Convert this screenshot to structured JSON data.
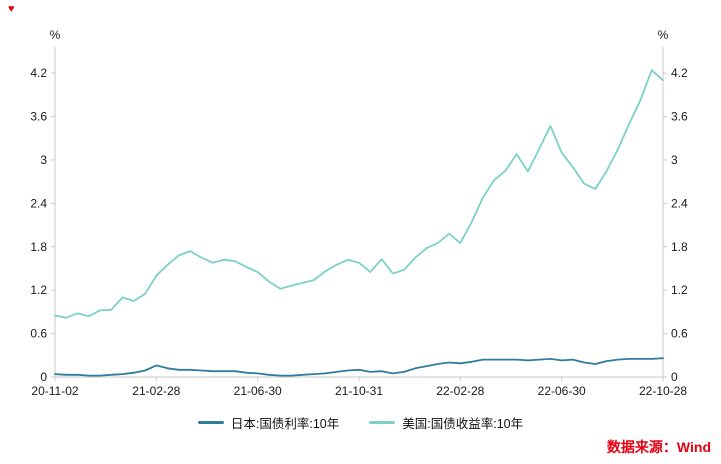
{
  "decor": {
    "corner_marker_glyph": "♥"
  },
  "chart_data": {
    "type": "line",
    "title": "",
    "unit_label": "%",
    "legend_position": "bottom",
    "grid": false,
    "axis_color": "#c9c9c9",
    "tick_text_color": "#1a1a1a",
    "x_tick_labels": [
      "20-11-02",
      "21-02-28",
      "21-06-30",
      "21-10-31",
      "22-02-28",
      "22-06-30",
      "22-10-28"
    ],
    "x_tick_indices": [
      0,
      9,
      18,
      27,
      36,
      45,
      54
    ],
    "y_tick_labels": [
      "0",
      "0.6",
      "1.2",
      "1.8",
      "2.4",
      "3",
      "3.6",
      "4.2"
    ],
    "y_tick_values": [
      0,
      0.6,
      1.2,
      1.8,
      2.4,
      3,
      3.6,
      4.2
    ],
    "ylim": [
      0,
      4.45
    ],
    "series": [
      {
        "name": "日本:国债利率:10年",
        "color": "#2e7d9c",
        "values": [
          0.04,
          0.03,
          0.03,
          0.02,
          0.02,
          0.03,
          0.04,
          0.06,
          0.09,
          0.16,
          0.12,
          0.1,
          0.1,
          0.09,
          0.08,
          0.08,
          0.08,
          0.06,
          0.05,
          0.03,
          0.02,
          0.02,
          0.03,
          0.04,
          0.05,
          0.07,
          0.09,
          0.1,
          0.07,
          0.08,
          0.05,
          0.07,
          0.12,
          0.15,
          0.18,
          0.2,
          0.19,
          0.21,
          0.24,
          0.24,
          0.24,
          0.24,
          0.23,
          0.24,
          0.25,
          0.23,
          0.24,
          0.2,
          0.18,
          0.22,
          0.24,
          0.25,
          0.25,
          0.25,
          0.26
        ]
      },
      {
        "name": "美国:国债收益率:10年",
        "color": "#7cd1c7",
        "values": [
          0.85,
          0.82,
          0.88,
          0.84,
          0.92,
          0.93,
          1.1,
          1.05,
          1.15,
          1.4,
          1.55,
          1.68,
          1.74,
          1.65,
          1.58,
          1.62,
          1.6,
          1.52,
          1.45,
          1.32,
          1.22,
          1.26,
          1.3,
          1.34,
          1.46,
          1.55,
          1.62,
          1.58,
          1.45,
          1.63,
          1.43,
          1.48,
          1.65,
          1.78,
          1.85,
          1.98,
          1.85,
          2.14,
          2.48,
          2.72,
          2.85,
          3.08,
          2.84,
          3.15,
          3.47,
          3.1,
          2.9,
          2.67,
          2.6,
          2.85,
          3.15,
          3.5,
          3.83,
          4.24,
          4.1
        ]
      }
    ]
  },
  "source": {
    "label": "数据来源：Wind",
    "color": "#e60012"
  }
}
